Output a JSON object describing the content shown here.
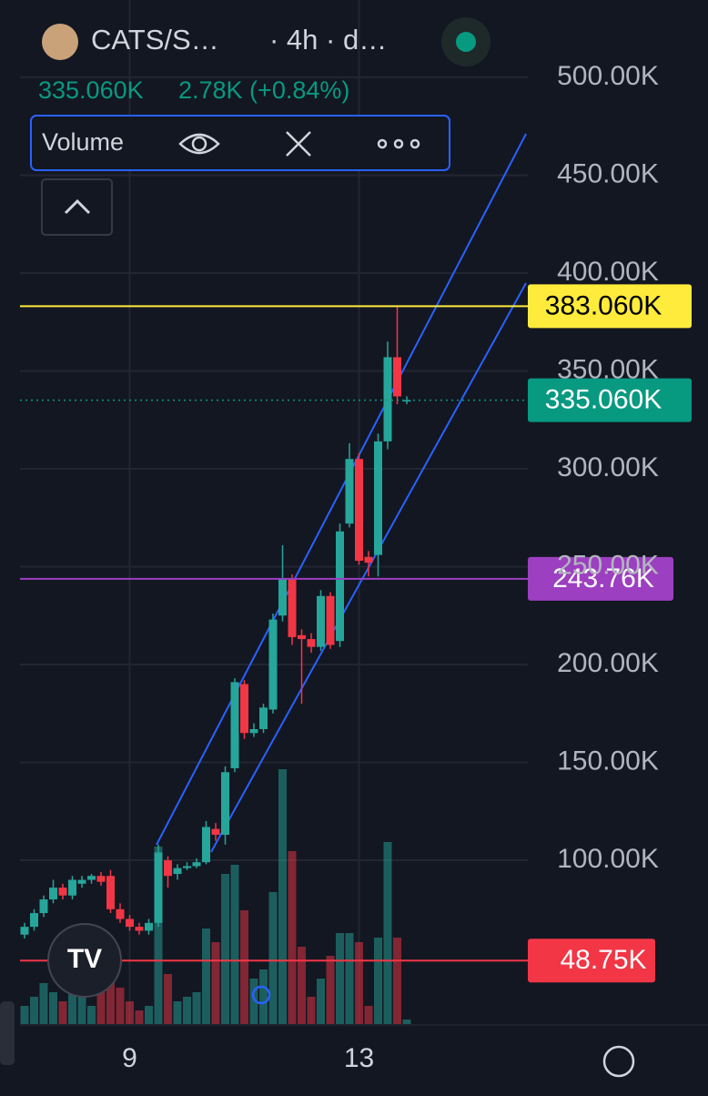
{
  "header": {
    "symbol": "CATS/S…",
    "interval": "· 4h · d…",
    "price": "335.060K",
    "change": "2.78K (+0.84%)",
    "indicator": "Volume"
  },
  "chart_data": {
    "type": "candlestick",
    "categories": [
      null,
      null,
      null,
      null,
      null,
      null,
      null,
      null,
      null,
      null,
      null,
      "9",
      null,
      null,
      null,
      null,
      null,
      null,
      null,
      null,
      null,
      null,
      null,
      null,
      null,
      null,
      null,
      null,
      null,
      null,
      null,
      null,
      null,
      null,
      null,
      "13",
      null,
      null,
      null,
      null,
      null
    ],
    "open": [
      62000,
      66000,
      73000,
      80000,
      86000,
      82000,
      88000,
      90000,
      92000,
      92000,
      75000,
      70000,
      66000,
      64000,
      68000,
      100000,
      93000,
      96000,
      97000,
      99000,
      116000,
      113000,
      147000,
      190000,
      165000,
      167000,
      177000,
      225000,
      244000,
      215000,
      213000,
      209000,
      235000,
      212000,
      272000,
      305000,
      255000,
      256000,
      314000,
      357000,
      335000
    ],
    "high": [
      68000,
      75000,
      82000,
      90000,
      88000,
      92000,
      92000,
      93000,
      94000,
      95000,
      78000,
      72000,
      68000,
      70000,
      108000,
      102000,
      98000,
      99000,
      101000,
      120000,
      119000,
      148000,
      193000,
      192000,
      170000,
      180000,
      226000,
      261000,
      246000,
      218000,
      216000,
      238000,
      237000,
      272000,
      313000,
      308000,
      258000,
      318000,
      365000,
      383060,
      337000
    ],
    "low": [
      60000,
      64000,
      71000,
      78000,
      80000,
      80000,
      86000,
      88000,
      87000,
      73000,
      68000,
      64000,
      62000,
      62000,
      66000,
      86000,
      90000,
      95000,
      96000,
      98000,
      110000,
      108000,
      145000,
      162000,
      163000,
      165000,
      175000,
      222000,
      210000,
      180000,
      206000,
      207000,
      208000,
      209000,
      270000,
      251000,
      245000,
      245000,
      310000,
      333000,
      333000
    ],
    "close": [
      66000,
      73000,
      80000,
      86000,
      82000,
      90000,
      90000,
      92000,
      89000,
      75000,
      70000,
      66000,
      64000,
      68000,
      104000,
      92000,
      96000,
      97000,
      99000,
      117000,
      113000,
      145000,
      191000,
      165000,
      167000,
      178000,
      223000,
      244000,
      214000,
      213000,
      209000,
      235000,
      210000,
      268000,
      305000,
      253000,
      252000,
      314000,
      357000,
      337000,
      335060
    ],
    "volume": {
      "values": [
        20,
        30,
        45,
        35,
        25,
        45,
        30,
        20,
        35,
        85,
        40,
        25,
        15,
        20,
        195,
        55,
        25,
        30,
        35,
        105,
        90,
        165,
        175,
        125,
        50,
        60,
        145,
        280,
        190,
        85,
        30,
        50,
        75,
        100,
        100,
        90,
        20,
        95,
        200,
        95,
        5
      ]
    },
    "up_color": "#26a69a",
    "down_color": "#f23645",
    "ylim": [
      16300,
      539500
    ],
    "yticks": [
      {
        "value": 100000,
        "label": "100.00K"
      },
      {
        "value": 150000,
        "label": "150.00K"
      },
      {
        "value": 200000,
        "label": "200.00K"
      },
      {
        "value": 250000,
        "label": "250.00K"
      },
      {
        "value": 300000,
        "label": "300.00K"
      },
      {
        "value": 350000,
        "label": "350.00K"
      },
      {
        "value": 400000,
        "label": "400.00K"
      },
      {
        "value": 450000,
        "label": "450.00K"
      },
      {
        "value": 500000,
        "label": "500.00K"
      }
    ],
    "price_lines": [
      {
        "value": 383060,
        "label": "383.060K",
        "color": "#ffeb3b",
        "text_color": "#000000"
      },
      {
        "value": 335060,
        "label": "335.060K",
        "color": "#089981",
        "text_color": "#ffffff",
        "dotted": true
      },
      {
        "value": 243760,
        "label": "243.76K",
        "color": "#9c3fc0",
        "text_color": "#ffffff"
      },
      {
        "value": 48750,
        "label": "48.75K",
        "color": "#f23645",
        "text_color": "#ffffff"
      }
    ],
    "grid": true
  }
}
